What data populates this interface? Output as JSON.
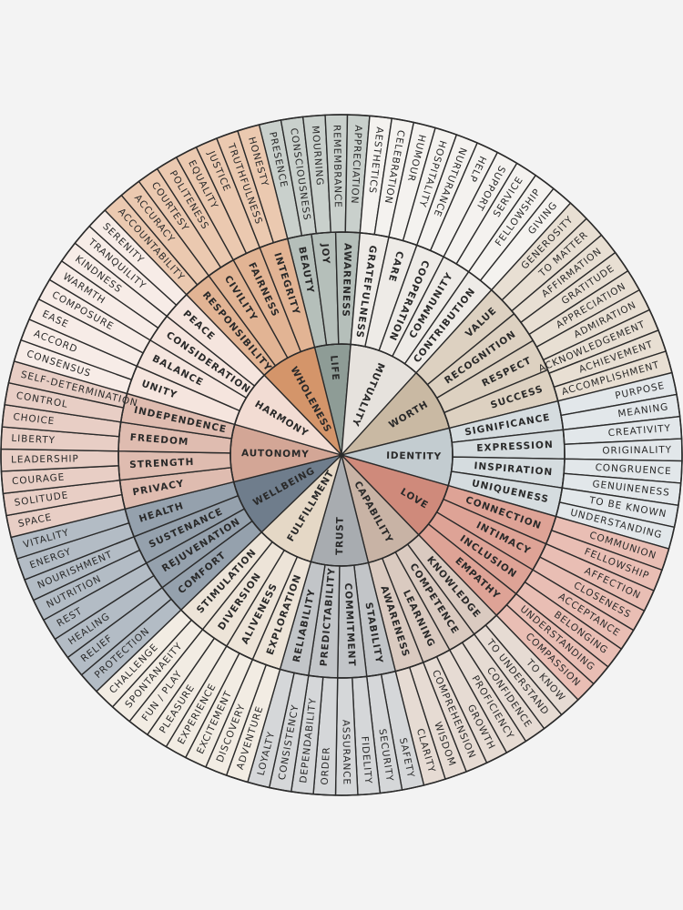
{
  "wheel": [
    {
      "core": "LIFE",
      "middle": [
        "BEAUTY",
        "JOY",
        "AWARENESS"
      ],
      "outer": [
        "PRESENCE",
        "CONSCIOUSNESS",
        "MOURNING",
        "REMEMBRANCE",
        "APPRECIATION"
      ]
    },
    {
      "core": "MUTUALITY",
      "middle": [
        "GRATEFULNESS",
        "CARE",
        "COOPERATION",
        "COMMUNITY",
        "CONTRIBUTION"
      ],
      "outer": [
        "AESTHETICS",
        "CELEBRATION",
        "HUMOUR",
        "HOSPITALITY",
        "NURTURANCE",
        "HELP",
        "SUPPORT",
        "SERVICE",
        "FELLOWSHIP",
        "GIVING"
      ]
    },
    {
      "core": "WORTH",
      "middle": [
        "VALUE",
        "RECOGNITION",
        "RESPECT",
        "SUCCESS"
      ],
      "outer": [
        "GENEROSITY",
        "TO MATTER",
        "AFFIRMATION",
        "GRATITUDE",
        "APPRECIATION",
        "ADMIRATION",
        "ACKNOWLEDGEMENT",
        "ACHIEVEMENT",
        "ACCOMPLISHMENT"
      ]
    },
    {
      "core": "IDENTITY",
      "middle": [
        "SIGNIFICANCE",
        "EXPRESSION",
        "INSPIRATION",
        "UNIQUENESS"
      ],
      "outer": [
        "PURPOSE",
        "MEANING",
        "CREATIVITY",
        "ORIGINALITY",
        "CONGRUENCE",
        "GENUINENESS",
        "TO BE KNOWN",
        "UNDERSTANDING"
      ]
    },
    {
      "core": "LOVE",
      "middle": [
        "CONNECTION",
        "INTIMACY",
        "INCLUSION",
        "EMPATHY"
      ],
      "outer": [
        "COMMUNION",
        "FELLOWSHIP",
        "AFFECTION",
        "CLOSENESS",
        "ACCEPTANCE",
        "BELONGING",
        "UNDERSTANDING",
        "COMPASSION"
      ]
    },
    {
      "core": "CAPABILITY",
      "middle": [
        "KNOWLEDGE",
        "COMPETENCE",
        "LEARNING",
        "AWARENESS"
      ],
      "outer": [
        "TO KNOW",
        "TO UNDERSTAND",
        "CONFIDENCE",
        "PROFICIENCY",
        "GROWTH",
        "COMPREHENSION",
        "WISDOM",
        "CLARITY"
      ]
    },
    {
      "core": "TRUST",
      "middle": [
        "STABILITY",
        "COMMITMENT",
        "PREDICTABILITY",
        "RELIABILITY"
      ],
      "outer": [
        "SAFETY",
        "SECURITY",
        "FIDELITY",
        "ASSURANCE",
        "ORDER",
        "DEPENDABILITY",
        "CONSISTENCY",
        "LOYALTY"
      ]
    },
    {
      "core": "FULFILLMENT",
      "middle": [
        "EXPLORATION",
        "ALIVENESS",
        "DIVERSION",
        "STIMULATION"
      ],
      "outer": [
        "ADVENTURE",
        "DISCOVERY",
        "EXCITEMENT",
        "EXPERIENCE",
        "PLEASURE",
        "FUN / PLAY",
        "SPONTANAEITY",
        "CHALLENGE"
      ]
    },
    {
      "core": "WELLBEING",
      "middle": [
        "COMFORT",
        "REJUVENATION",
        "SUSTENANCE",
        "HEALTH"
      ],
      "outer": [
        "PROTECTION",
        "RELIEF",
        "HEALING",
        "REST",
        "NUTRITION",
        "NOURISHMENT",
        "ENERGY",
        "VITALITY"
      ]
    },
    {
      "core": "AUTONOMY",
      "middle": [
        "PRIVACY",
        "STRENGTH",
        "FREEDOM",
        "INDEPENDENCE"
      ],
      "outer": [
        "SPACE",
        "SOLITUDE",
        "COURAGE",
        "LEADERSHIP",
        "LIBERTY",
        "CHOICE",
        "CONTROL",
        "SELF-DETERMINATION"
      ]
    },
    {
      "core": "HARMONY",
      "middle": [
        "UNITY",
        "BALANCE",
        "CONSIDERATION",
        "PEACE"
      ],
      "outer": [
        "CONSENSUS",
        "ACCORD",
        "EASE",
        "COMPOSURE",
        "WARMTH",
        "KINDNESS",
        "TRANQUILITY",
        "SERENITY"
      ]
    },
    {
      "core": "WHOLENESS",
      "middle": [
        "RESPONSIBILITY",
        "CIVILITY",
        "FAIRNESS",
        "INTEGRITY"
      ],
      "outer": [
        "ACCOUNTABILITY",
        "ACCURACY",
        "COURTESY",
        "POLITENESS",
        "EQUALITY",
        "JUSTICE",
        "TRUTHFULNESS",
        "HONESTY"
      ]
    }
  ]
}
